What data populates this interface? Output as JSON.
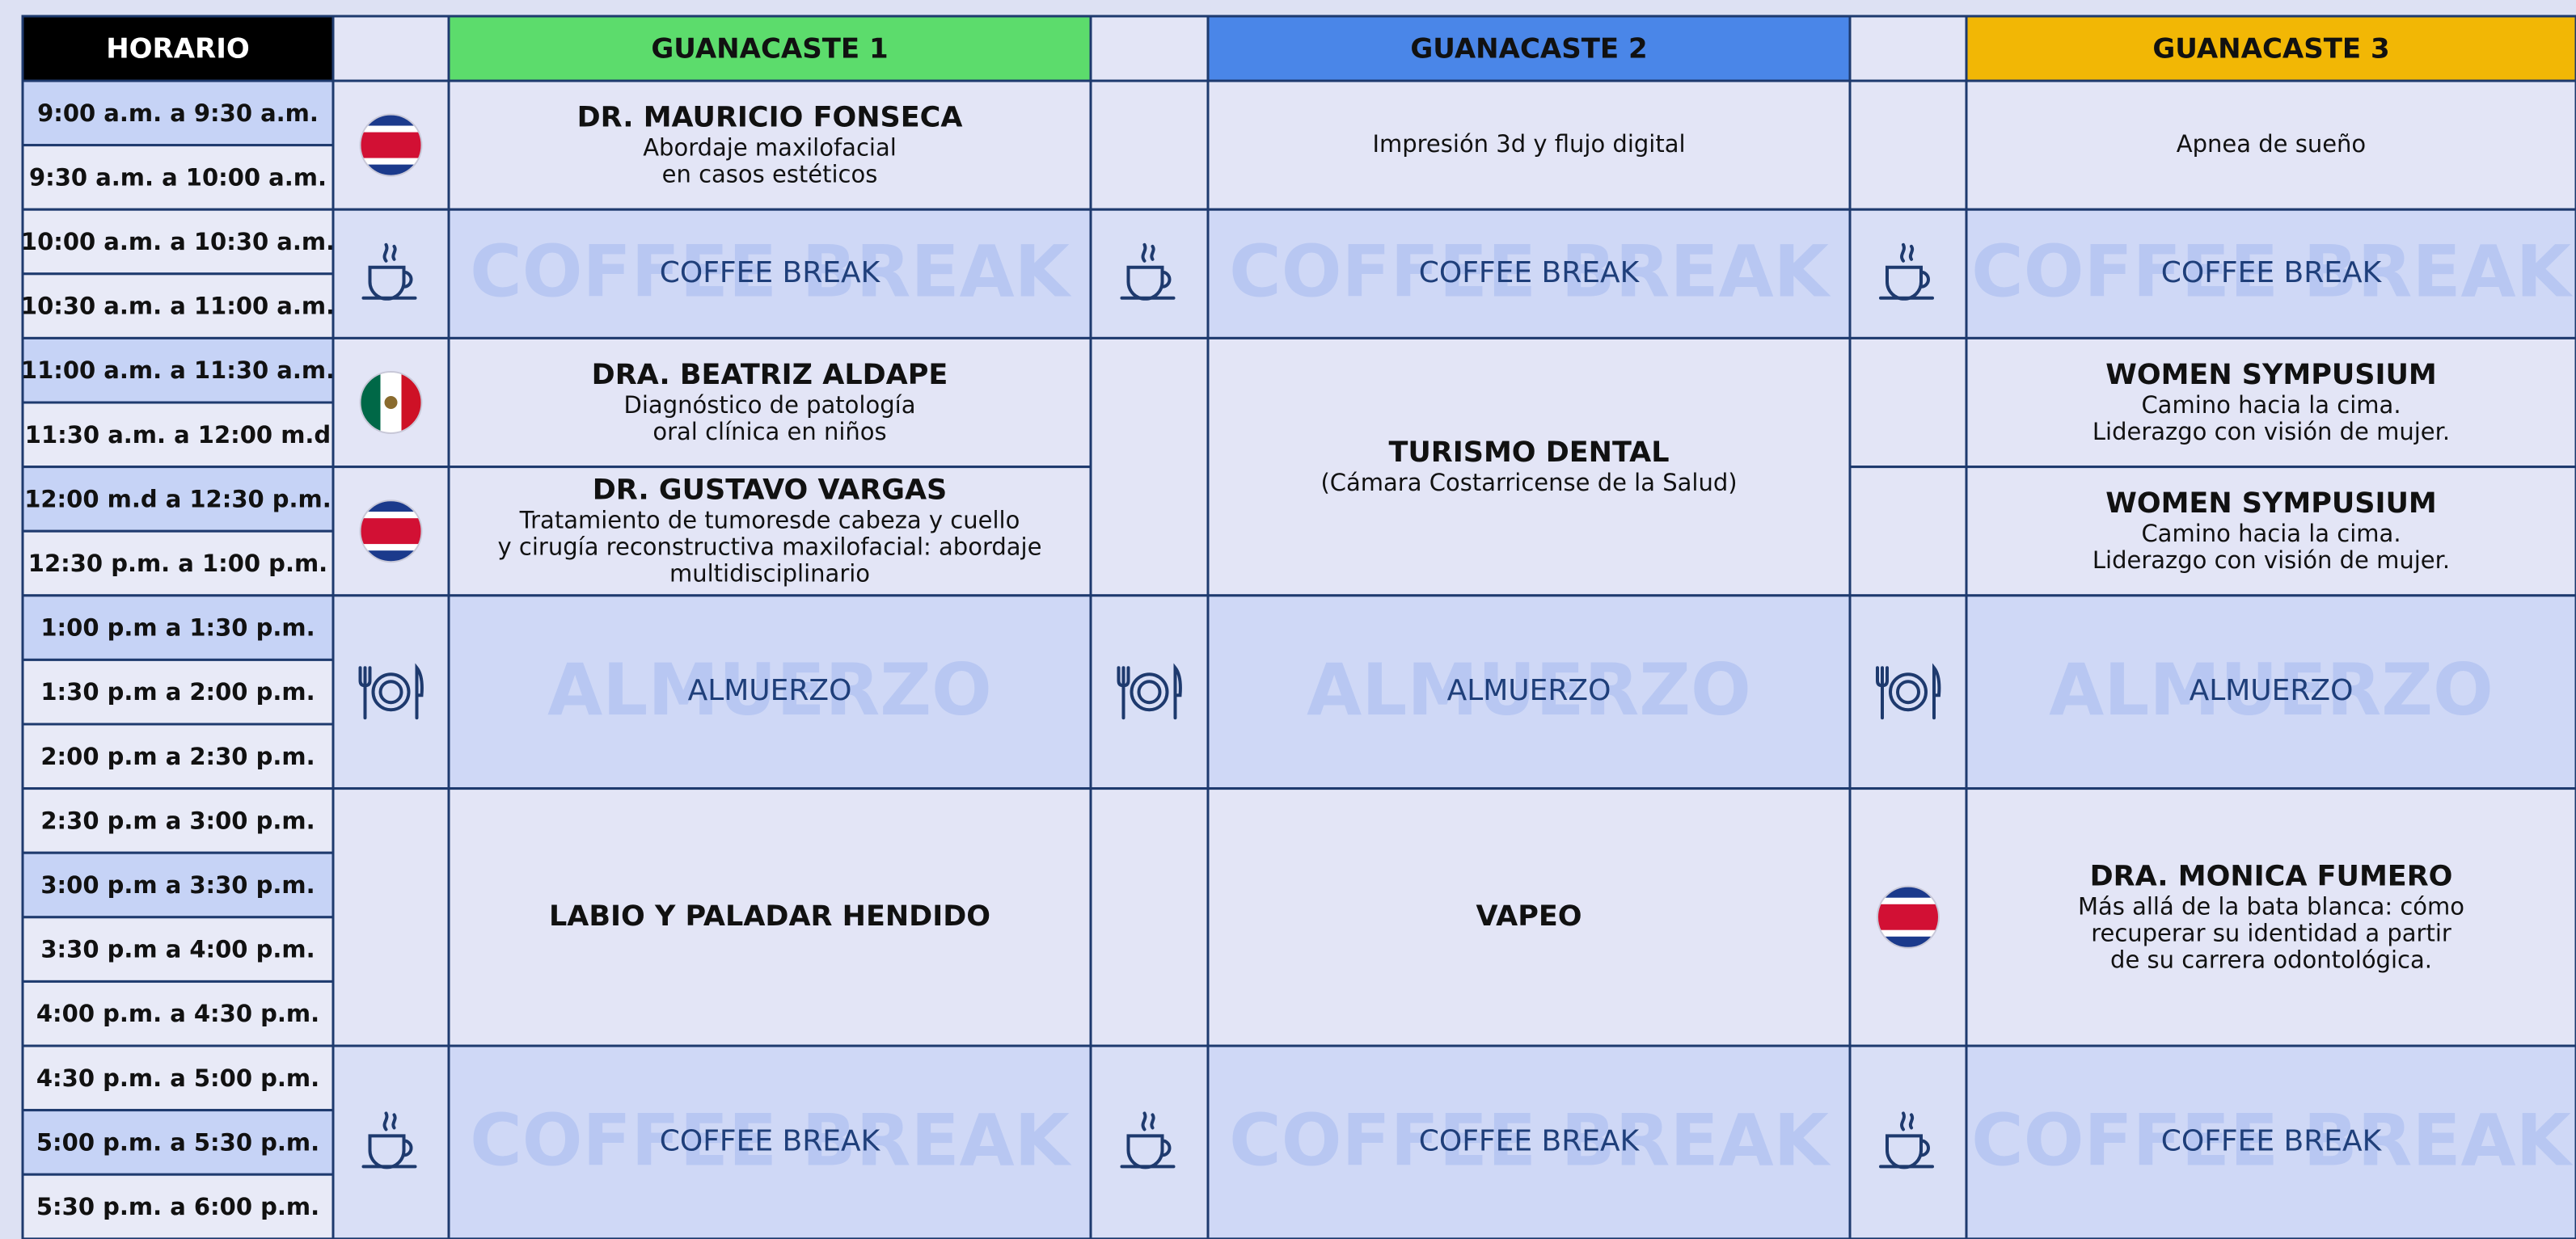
{
  "schedule": {
    "time_header": "HORARIO",
    "times": [
      "9:00 a.m. a 9:30 a.m.",
      "9:30 a.m. a 10:00 a.m.",
      "10:00 a.m. a 10:30 a.m.",
      "10:30 a.m. a 11:00 a.m.",
      "11:00 a.m. a 11:30 a.m.",
      "11:30 a.m. a 12:00 m.d",
      "12:00 m.d a 12:30 p.m.",
      "12:30 p.m. a 1:00 p.m.",
      "1:00 p.m a 1:30 p.m.",
      "1:30 p.m a 2:00 p.m.",
      "2:00 p.m a 2:30 p.m.",
      "2:30 p.m a 3:00 p.m.",
      "3:00 p.m a 3:30 p.m.",
      "3:30 p.m a 4:00 p.m.",
      "4:00 p.m. a 4:30 p.m.",
      "4:30 p.m. a 5:00 p.m.",
      "5:00 p.m. a 5:30 p.m.",
      "5:30 p.m. a 6:00 p.m."
    ],
    "rooms": [
      {
        "name": "GUANACASTE 1",
        "color": "#5cdc6c",
        "sessions": [
          {
            "slots": 2,
            "icon": "cr",
            "title": "DR. MAURICIO FONSECA",
            "lines": [
              "Abordaje maxilofacial",
              "en casos estéticos"
            ]
          },
          {
            "slots": 2,
            "icon": "coffee",
            "break": true,
            "title": "COFFEE BREAK",
            "watermark": "COFFEE BREAK"
          },
          {
            "slots": 2,
            "icon": "mx",
            "title": "DRA. BEATRIZ ALDAPE",
            "lines": [
              "Diagnóstico de patología",
              "oral clínica en niños"
            ]
          },
          {
            "slots": 2,
            "icon": "cr",
            "title": "DR. GUSTAVO VARGAS",
            "lines": [
              "Tratamiento de tumoresde cabeza y cuello",
              "y cirugía reconstructiva maxilofacial: abordaje",
              "multidisciplinario"
            ]
          },
          {
            "slots": 3,
            "icon": "lunch",
            "break": true,
            "title": "ALMUERZO",
            "watermark": "ALMUERZO"
          },
          {
            "slots": 4,
            "title": "LABIO Y PALADAR HENDIDO"
          },
          {
            "slots": 3,
            "icon": "coffee",
            "break": true,
            "title": "COFFEE BREAK",
            "watermark": "COFFEE BREAK"
          }
        ]
      },
      {
        "name": "GUANACASTE 2",
        "color": "#4a86e8",
        "sessions": [
          {
            "slots": 2,
            "lines": [
              "Impresión 3d y flujo digital"
            ]
          },
          {
            "slots": 2,
            "icon": "coffee",
            "break": true,
            "title": "COFFEE BREAK",
            "watermark": "COFFEE BREAK"
          },
          {
            "slots": 4,
            "title": "TURISMO DENTAL",
            "lines": [
              "(Cámara Costarricense de la Salud)"
            ]
          },
          {
            "slots": 3,
            "icon": "lunch",
            "break": true,
            "title": "ALMUERZO",
            "watermark": "ALMUERZO"
          },
          {
            "slots": 4,
            "title": "VAPEO"
          },
          {
            "slots": 3,
            "icon": "coffee",
            "break": true,
            "title": "COFFEE BREAK",
            "watermark": "COFFEE BREAK"
          }
        ]
      },
      {
        "name": "GUANACASTE 3",
        "color": "#f2b705",
        "sessions": [
          {
            "slots": 2,
            "lines": [
              "Apnea de sueño"
            ]
          },
          {
            "slots": 2,
            "icon": "coffee",
            "break": true,
            "title": "COFFEE BREAK",
            "watermark": "COFFEE BREAK"
          },
          {
            "slots": 2,
            "title": "WOMEN SYMPUSIUM",
            "lines": [
              "Camino hacia la cima.",
              "Liderazgo con visión de mujer."
            ]
          },
          {
            "slots": 2,
            "title": "WOMEN SYMPUSIUM",
            "lines": [
              "Camino hacia la cima.",
              "Liderazgo con visión de mujer."
            ]
          },
          {
            "slots": 3,
            "icon": "lunch",
            "break": true,
            "title": "ALMUERZO",
            "watermark": "ALMUERZO"
          },
          {
            "slots": 4,
            "icon": "cr",
            "title": "DRA. MONICA FUMERO",
            "lines": [
              "Más allá de la bata blanca: cómo",
              "recuperar su identidad a partir",
              "de su carrera odontológica."
            ]
          },
          {
            "slots": 3,
            "icon": "coffee",
            "break": true,
            "title": "COFFEE BREAK",
            "watermark": "COFFEE BREAK"
          }
        ]
      }
    ]
  }
}
